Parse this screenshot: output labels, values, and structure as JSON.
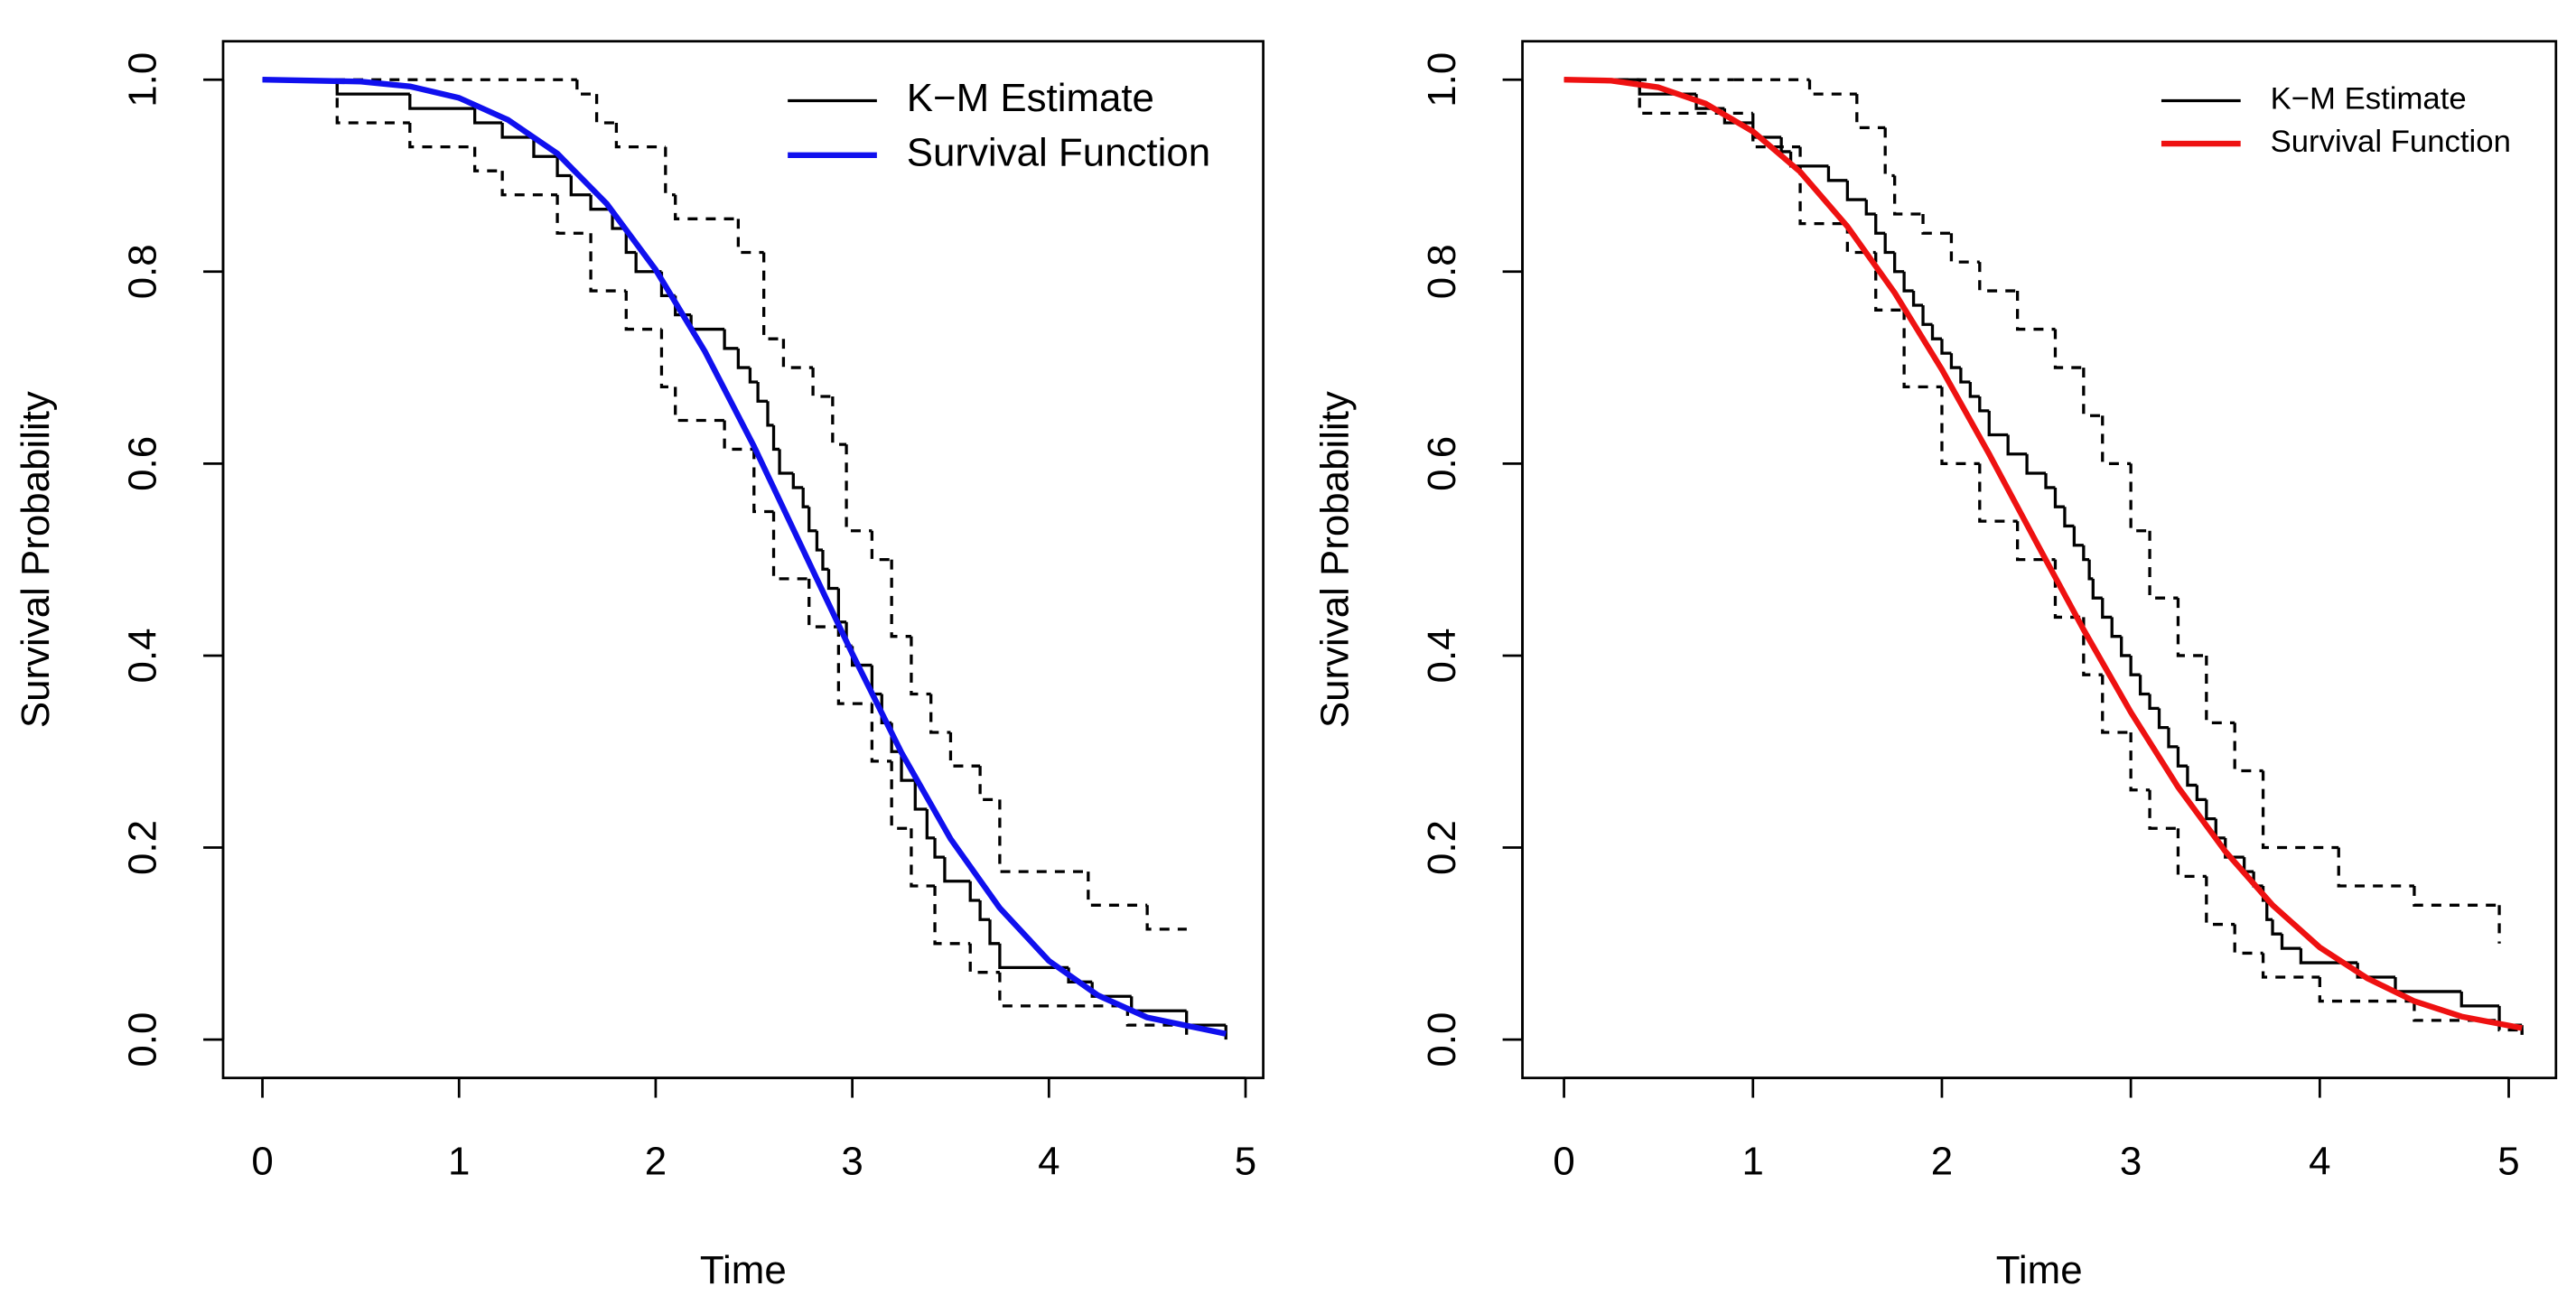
{
  "chart_data": [
    {
      "type": "line",
      "xlabel": "Time",
      "ylabel": "Survival Probability",
      "xlim": [
        -0.2,
        5.09
      ],
      "ylim": [
        -0.04,
        1.04
      ],
      "xticks": [
        0,
        1,
        2,
        3,
        4,
        5
      ],
      "yticks": [
        {
          "value": 0,
          "label": "0.0"
        },
        0.2,
        0.4,
        0.6,
        0.8,
        {
          "value": 1,
          "label": "1.0"
        }
      ],
      "legend": "top-right",
      "series": [
        {
          "name": "K−M Estimate",
          "color": "#000000",
          "style": "step",
          "x": [
            0,
            0.38,
            0.75,
            1.08,
            1.22,
            1.38,
            1.5,
            1.57,
            1.67,
            1.78,
            1.85,
            1.9,
            2.03,
            2.1,
            2.18,
            2.35,
            2.42,
            2.48,
            2.52,
            2.57,
            2.6,
            2.63,
            2.7,
            2.75,
            2.78,
            2.82,
            2.85,
            2.88,
            2.93,
            2.97,
            3.0,
            3.1,
            3.15,
            3.2,
            3.25,
            3.32,
            3.38,
            3.42,
            3.47,
            3.6,
            3.65,
            3.7,
            3.75,
            4.1,
            4.22,
            4.42,
            4.7,
            4.9
          ],
          "values": [
            1.0,
            0.985,
            0.97,
            0.955,
            0.94,
            0.92,
            0.9,
            0.88,
            0.865,
            0.845,
            0.82,
            0.8,
            0.775,
            0.755,
            0.74,
            0.72,
            0.7,
            0.685,
            0.665,
            0.64,
            0.615,
            0.59,
            0.575,
            0.555,
            0.53,
            0.51,
            0.49,
            0.47,
            0.435,
            0.41,
            0.39,
            0.36,
            0.33,
            0.3,
            0.27,
            0.24,
            0.21,
            0.19,
            0.165,
            0.145,
            0.125,
            0.1,
            0.075,
            0.06,
            0.045,
            0.03,
            0.015,
            0.0
          ]
        },
        {
          "color": "#000000",
          "style": "dashed-step",
          "x": [
            0,
            1.6,
            1.7,
            1.8,
            2.05,
            2.1,
            2.42,
            2.55,
            2.65,
            2.8,
            2.9,
            2.97,
            3.1,
            3.2,
            3.3,
            3.4,
            3.5,
            3.65,
            3.75,
            4.2,
            4.5,
            4.7
          ],
          "values": [
            1.0,
            0.985,
            0.955,
            0.93,
            0.88,
            0.855,
            0.82,
            0.73,
            0.7,
            0.67,
            0.62,
            0.53,
            0.5,
            0.42,
            0.36,
            0.32,
            0.285,
            0.25,
            0.175,
            0.14,
            0.115,
            0.115
          ]
        },
        {
          "color": "#000000",
          "style": "dashed-step",
          "x": [
            0,
            0.38,
            0.75,
            1.08,
            1.22,
            1.5,
            1.67,
            1.85,
            2.03,
            2.1,
            2.35,
            2.5,
            2.6,
            2.78,
            2.93,
            3.1,
            3.2,
            3.3,
            3.42,
            3.6,
            3.75,
            4.4,
            4.7
          ],
          "values": [
            1.0,
            0.955,
            0.93,
            0.905,
            0.88,
            0.84,
            0.78,
            0.74,
            0.68,
            0.645,
            0.615,
            0.55,
            0.48,
            0.43,
            0.35,
            0.29,
            0.22,
            0.16,
            0.1,
            0.07,
            0.035,
            0.015,
            0.005
          ]
        },
        {
          "name": "Survival Function",
          "color": "#1010ee",
          "style": "smooth",
          "x": [
            0,
            0.5,
            0.75,
            1,
            1.25,
            1.5,
            1.75,
            2,
            2.25,
            2.5,
            2.75,
            3,
            3.25,
            3.5,
            3.75,
            4,
            4.25,
            4.5,
            4.9
          ],
          "values": [
            1.0,
            0.998,
            0.993,
            0.981,
            0.958,
            0.923,
            0.871,
            0.802,
            0.717,
            0.618,
            0.51,
            0.402,
            0.299,
            0.209,
            0.137,
            0.082,
            0.046,
            0.023,
            0.006
          ]
        }
      ]
    },
    {
      "type": "line",
      "xlabel": "Time",
      "ylabel": "Survival Probability",
      "xlim": [
        -0.22,
        5.25
      ],
      "ylim": [
        -0.04,
        1.04
      ],
      "xticks": [
        0,
        1,
        2,
        3,
        4,
        5
      ],
      "yticks": [
        {
          "value": 0,
          "label": "0.0"
        },
        0.2,
        0.4,
        0.6,
        0.8,
        {
          "value": 1,
          "label": "1.0"
        }
      ],
      "legend": "top-right",
      "series": [
        {
          "name": "K−M Estimate",
          "color": "#000000",
          "style": "step",
          "x": [
            0,
            0.4,
            0.7,
            0.85,
            1.0,
            1.15,
            1.2,
            1.4,
            1.5,
            1.6,
            1.65,
            1.7,
            1.75,
            1.8,
            1.85,
            1.9,
            1.95,
            2.0,
            2.05,
            2.1,
            2.15,
            2.2,
            2.25,
            2.35,
            2.45,
            2.55,
            2.6,
            2.65,
            2.7,
            2.75,
            2.78,
            2.8,
            2.85,
            2.9,
            2.95,
            3.0,
            3.05,
            3.1,
            3.15,
            3.2,
            3.25,
            3.3,
            3.35,
            3.4,
            3.45,
            3.5,
            3.6,
            3.65,
            3.7,
            3.72,
            3.75,
            3.8,
            3.9,
            4.2,
            4.4,
            4.75,
            4.95,
            5.07
          ],
          "values": [
            1.0,
            0.985,
            0.97,
            0.955,
            0.94,
            0.925,
            0.91,
            0.895,
            0.875,
            0.86,
            0.84,
            0.82,
            0.8,
            0.78,
            0.765,
            0.745,
            0.73,
            0.715,
            0.7,
            0.685,
            0.67,
            0.655,
            0.63,
            0.61,
            0.59,
            0.575,
            0.555,
            0.535,
            0.515,
            0.5,
            0.48,
            0.46,
            0.44,
            0.42,
            0.4,
            0.38,
            0.36,
            0.345,
            0.325,
            0.305,
            0.285,
            0.265,
            0.25,
            0.23,
            0.21,
            0.19,
            0.175,
            0.16,
            0.145,
            0.125,
            0.11,
            0.095,
            0.08,
            0.065,
            0.05,
            0.035,
            0.015,
            0.005
          ]
        },
        {
          "color": "#000000",
          "style": "dashed-step",
          "x": [
            0,
            0.9,
            1.3,
            1.55,
            1.7,
            1.75,
            1.9,
            2.05,
            2.2,
            2.4,
            2.6,
            2.75,
            2.85,
            3.0,
            3.1,
            3.25,
            3.4,
            3.55,
            3.7,
            4.1,
            4.5,
            4.95
          ],
          "values": [
            1.0,
            1.0,
            0.985,
            0.95,
            0.9,
            0.86,
            0.84,
            0.81,
            0.78,
            0.74,
            0.7,
            0.65,
            0.6,
            0.53,
            0.46,
            0.4,
            0.33,
            0.28,
            0.2,
            0.16,
            0.14,
            0.1
          ]
        },
        {
          "color": "#000000",
          "style": "dashed-step",
          "x": [
            0,
            0.4,
            1.0,
            1.25,
            1.5,
            1.65,
            1.8,
            2.0,
            2.2,
            2.4,
            2.6,
            2.75,
            2.85,
            3.0,
            3.1,
            3.25,
            3.4,
            3.55,
            3.7,
            4.0,
            4.5,
            4.95,
            5.07
          ],
          "values": [
            1.0,
            0.965,
            0.93,
            0.85,
            0.82,
            0.76,
            0.68,
            0.6,
            0.54,
            0.5,
            0.44,
            0.38,
            0.32,
            0.26,
            0.22,
            0.17,
            0.12,
            0.09,
            0.065,
            0.04,
            0.02,
            0.01,
            0.005
          ]
        },
        {
          "name": "Survival Function",
          "color": "#ee1111",
          "style": "smooth",
          "x": [
            0,
            0.25,
            0.5,
            0.75,
            1,
            1.25,
            1.5,
            1.75,
            2,
            2.25,
            2.5,
            2.75,
            3,
            3.25,
            3.5,
            3.75,
            4,
            4.25,
            4.5,
            4.75,
            5.07
          ],
          "values": [
            1.0,
            0.999,
            0.992,
            0.975,
            0.946,
            0.904,
            0.847,
            0.778,
            0.698,
            0.61,
            0.518,
            0.427,
            0.341,
            0.263,
            0.196,
            0.14,
            0.096,
            0.064,
            0.04,
            0.024,
            0.012
          ]
        }
      ]
    }
  ]
}
